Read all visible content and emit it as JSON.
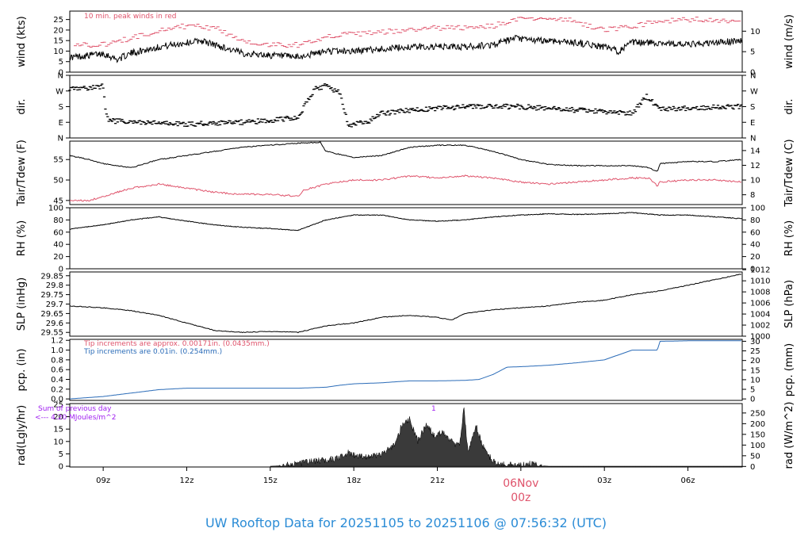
{
  "title": "UW Rooftop Data for 20251105  to  20251106 @ 07:56:32  (UTC)",
  "colors": {
    "black": "#000000",
    "red": "#df536b",
    "blue": "#2b6cb8",
    "purple": "#a020f0",
    "title": "#2b8cd6"
  },
  "time_axis": {
    "start_hour": 7.8,
    "end_hour": 31.95,
    "ticks": [
      {
        "hour": 9,
        "label": "09z"
      },
      {
        "hour": 12,
        "label": "12z"
      },
      {
        "hour": 15,
        "label": "15z"
      },
      {
        "hour": 18,
        "label": "18z"
      },
      {
        "hour": 21,
        "label": "21z"
      },
      {
        "hour": 27,
        "label": "03z"
      },
      {
        "hour": 30,
        "label": "06z"
      }
    ],
    "date_marker": {
      "hour": 24,
      "date_label": "06Nov",
      "hour_label": "00z"
    }
  },
  "notes": {
    "wind": "10 min. peak winds in red",
    "pcp_line1": "Tip increments are approx. 0.00171in. (0.0435mm.)",
    "pcp_line2": "Tip increments are 0.01in. (0.254mm.)",
    "rad_line1": "Sum of previous day",
    "rad_line2": "<--- 4.20 MJoules/m^2",
    "rad_marker": "1"
  },
  "chart_data": [
    {
      "name": "wind",
      "type": "line",
      "ylabel": "wind (kts)",
      "ylabel_right": "wind (m/s)",
      "ylim": [
        0,
        29
      ],
      "yticks": [
        0,
        5,
        10,
        15,
        20,
        25
      ],
      "right_ylim": [
        0,
        14.9
      ],
      "right_yticks": [
        0,
        5,
        10
      ],
      "series": [
        {
          "name": "wind speed (kts)",
          "color": "#000000",
          "style": "line",
          "noise": 1.6,
          "x": [
            7.8,
            8.5,
            9.0,
            9.5,
            10.0,
            11.0,
            12.0,
            12.5,
            13.0,
            14.0,
            15.0,
            16.0,
            17.0,
            18.0,
            19.0,
            20.0,
            21.0,
            22.0,
            23.0,
            23.8,
            24.5,
            25.0,
            26.0,
            27.0,
            27.5,
            28.0,
            29.0,
            30.0,
            31.0,
            31.95
          ],
          "y": [
            7,
            8,
            9,
            6,
            9,
            12,
            14,
            15,
            13,
            9,
            8,
            7,
            10,
            10,
            11,
            12,
            12,
            12,
            13,
            16,
            15,
            15,
            14,
            12,
            10,
            14,
            14,
            13,
            14,
            15
          ]
        },
        {
          "name": "10 min. peak winds",
          "color": "#df536b",
          "style": "dash",
          "x": [
            8.0,
            9.0,
            10.0,
            11.0,
            12.0,
            13.0,
            14.0,
            15.0,
            16.0,
            17.0,
            18.0,
            19.0,
            20.0,
            21.0,
            22.0,
            23.0,
            24.0,
            25.0,
            26.0,
            27.0,
            28.0,
            29.0,
            30.0,
            31.0,
            31.9
          ],
          "y": [
            13,
            13,
            16,
            20,
            22,
            21,
            15,
            13,
            13,
            17,
            18,
            19,
            20,
            21,
            21,
            22,
            25,
            26,
            24,
            20,
            22,
            24,
            25,
            25,
            23
          ]
        }
      ]
    },
    {
      "name": "dir",
      "type": "scatter",
      "ylabel": "dir.",
      "ylabel_right": "dir.",
      "ylim": [
        0,
        360
      ],
      "yticks": [
        0,
        90,
        180,
        270,
        360
      ],
      "ytick_labels": [
        "N",
        "E",
        "S",
        "W",
        "N"
      ],
      "right_ytick_labels": [
        "N",
        "E",
        "S",
        "W",
        "N"
      ],
      "series": [
        {
          "name": "wind direction (deg)",
          "color": "#000000",
          "style": "dots",
          "noise": 14,
          "x": [
            7.8,
            8.5,
            9.0,
            9.1,
            9.2,
            10.0,
            12.0,
            14.0,
            15.0,
            16.0,
            16.3,
            16.6,
            17.0,
            17.5,
            17.8,
            18.5,
            19.0,
            20.0,
            22.0,
            24.0,
            26.0,
            27.0,
            28.0,
            28.5,
            29.0,
            30.0,
            31.0,
            31.95
          ],
          "y": [
            280,
            285,
            300,
            150,
            100,
            90,
            80,
            90,
            100,
            120,
            200,
            280,
            300,
            260,
            75,
            90,
            140,
            160,
            180,
            180,
            160,
            150,
            140,
            240,
            170,
            170,
            180,
            180
          ]
        }
      ]
    },
    {
      "name": "temperature",
      "type": "line",
      "ylabel": "Tair/Tdew (F)",
      "ylabel_right": "Tair/Tdew (C)",
      "ylim": [
        44,
        59.5
      ],
      "yticks": [
        45,
        50,
        55
      ],
      "right_ylim": [
        6.67,
        15.28
      ],
      "right_yticks": [
        8,
        10,
        12,
        14
      ],
      "series": [
        {
          "name": "Tair",
          "color": "#000000",
          "style": "line",
          "noise": 0.12,
          "x": [
            7.8,
            8.5,
            9.0,
            10.0,
            11.0,
            12.0,
            13.0,
            14.0,
            15.0,
            16.0,
            16.8,
            17.0,
            18.0,
            19.0,
            20.0,
            21.0,
            22.0,
            23.0,
            24.0,
            25.0,
            26.0,
            27.0,
            28.0,
            28.6,
            28.9,
            29.0,
            30.0,
            31.0,
            31.95
          ],
          "y": [
            56,
            55,
            54,
            53,
            55,
            56,
            57,
            58,
            58.5,
            59,
            59.2,
            57,
            55.5,
            56,
            58,
            58.5,
            58.5,
            57,
            55,
            53.8,
            53.5,
            53.5,
            53.5,
            53.0,
            52.0,
            54,
            54.5,
            54.5,
            55
          ]
        },
        {
          "name": "Tdew",
          "color": "#df536b",
          "style": "line",
          "noise": 0.2,
          "x": [
            7.8,
            8.5,
            9.0,
            10.0,
            11.0,
            12.0,
            13.0,
            14.0,
            15.0,
            16.0,
            16.2,
            17.0,
            18.0,
            19.0,
            20.0,
            21.0,
            22.0,
            23.0,
            24.0,
            25.0,
            26.0,
            27.0,
            28.0,
            28.6,
            28.9,
            29.0,
            30.0,
            31.0,
            31.95
          ],
          "y": [
            45,
            45,
            46,
            48,
            49,
            48,
            47,
            46.5,
            46.5,
            46,
            47.5,
            49,
            50,
            50,
            51,
            50.5,
            51,
            50.5,
            49.5,
            49,
            49.5,
            50,
            50.5,
            50.5,
            48.5,
            49.5,
            50,
            50,
            49.5
          ]
        }
      ]
    },
    {
      "name": "rh",
      "type": "line",
      "ylabel": "RH (%)",
      "ylabel_right": "RH (%)",
      "ylim": [
        0,
        100
      ],
      "yticks": [
        0,
        20,
        40,
        60,
        80,
        100
      ],
      "right_ylim": [
        0,
        100
      ],
      "right_yticks": [
        0,
        20,
        40,
        60,
        80,
        100
      ],
      "series": [
        {
          "name": "relative humidity",
          "color": "#000000",
          "style": "line",
          "noise": 0.6,
          "x": [
            7.8,
            9.0,
            10.0,
            11.0,
            12.0,
            13.0,
            14.0,
            15.0,
            16.0,
            17.0,
            18.0,
            19.0,
            20.0,
            21.0,
            22.0,
            23.0,
            24.0,
            25.0,
            26.0,
            27.0,
            28.0,
            29.0,
            30.0,
            31.0,
            31.95
          ],
          "y": [
            65,
            72,
            80,
            85,
            78,
            72,
            68,
            66,
            63,
            80,
            88,
            88,
            80,
            78,
            80,
            85,
            88,
            90,
            89,
            90,
            92,
            88,
            88,
            85,
            82
          ]
        }
      ]
    },
    {
      "name": "slp",
      "type": "line",
      "ylabel": "SLP (inHg)",
      "ylabel_right": "SLP (hPa)",
      "ylim": [
        29.53,
        29.87
      ],
      "yticks": [
        29.55,
        29.6,
        29.65,
        29.7,
        29.75,
        29.8,
        29.85
      ],
      "right_ylim": [
        1000,
        1011.6
      ],
      "right_yticks": [
        1000,
        1002,
        1004,
        1006,
        1008,
        1010,
        1012
      ],
      "series": [
        {
          "name": "sea level pressure",
          "color": "#000000",
          "style": "line",
          "noise": 0.002,
          "x": [
            7.8,
            9.0,
            10.0,
            11.0,
            12.0,
            13.0,
            14.0,
            15.0,
            16.0,
            17.0,
            18.0,
            19.0,
            20.0,
            21.0,
            21.5,
            22.0,
            23.0,
            24.0,
            25.0,
            26.0,
            27.0,
            28.0,
            29.0,
            30.0,
            31.0,
            31.95
          ],
          "y": [
            29.69,
            29.68,
            29.665,
            29.64,
            29.6,
            29.56,
            29.55,
            29.555,
            29.55,
            29.585,
            29.6,
            29.63,
            29.64,
            29.63,
            29.615,
            29.65,
            29.67,
            29.68,
            29.69,
            29.71,
            29.72,
            29.75,
            29.77,
            29.8,
            29.83,
            29.86
          ]
        }
      ]
    },
    {
      "name": "pcp",
      "type": "line",
      "ylabel": "pcp. (in)",
      "ylabel_right": "pcp. (mm)",
      "ylim": [
        -0.03,
        1.22
      ],
      "yticks": [
        0.0,
        0.2,
        0.4,
        0.6,
        0.8,
        1.0,
        1.2
      ],
      "ytick_labels": [
        "0.0",
        "0.2",
        "0.4",
        "0.6",
        "0.8",
        "1.0",
        "1.2"
      ],
      "right_ylim": [
        -0.76,
        31.0
      ],
      "right_yticks": [
        0,
        5,
        10,
        15,
        20,
        25,
        30
      ],
      "series": [
        {
          "name": "accumulated precipitation",
          "color": "#2b6cb8",
          "style": "line",
          "noise": 0,
          "x": [
            7.8,
            9.0,
            10.0,
            11.0,
            12.0,
            13.0,
            14.0,
            15.0,
            16.0,
            17.0,
            17.5,
            18.0,
            19.0,
            20.0,
            21.0,
            22.0,
            22.5,
            23.0,
            23.5,
            24.0,
            25.0,
            26.0,
            27.0,
            27.5,
            28.0,
            28.9,
            29.0,
            30.0,
            31.0,
            31.95
          ],
          "y": [
            0.0,
            0.05,
            0.12,
            0.19,
            0.22,
            0.22,
            0.22,
            0.22,
            0.22,
            0.24,
            0.28,
            0.31,
            0.33,
            0.37,
            0.37,
            0.38,
            0.4,
            0.5,
            0.65,
            0.66,
            0.69,
            0.74,
            0.8,
            0.9,
            1.0,
            1.0,
            1.18,
            1.19,
            1.19,
            1.19
          ]
        }
      ]
    },
    {
      "name": "rad",
      "type": "area",
      "ylabel": "rad(Lgly/hr)",
      "ylabel_right": "rad (W/m^2)",
      "ylim": [
        -0.3,
        25.3
      ],
      "yticks": [
        0,
        5,
        10,
        15,
        20,
        25
      ],
      "right_ylim": [
        -2.5,
        294
      ],
      "right_yticks": [
        0,
        50,
        100,
        150,
        200,
        250
      ],
      "series": [
        {
          "name": "solar radiation",
          "color": "#000000",
          "style": "area",
          "noise": 1.3,
          "x": [
            15.0,
            15.5,
            16.0,
            16.5,
            17.0,
            17.5,
            17.8,
            18.0,
            18.5,
            19.0,
            19.5,
            19.7,
            20.0,
            20.3,
            20.6,
            20.9,
            21.2,
            21.5,
            21.8,
            21.95,
            22.1,
            22.4,
            22.6,
            22.8,
            23.0,
            23.5,
            24.0,
            24.3,
            24.6,
            25.0,
            31.95
          ],
          "y": [
            0,
            0.3,
            1.0,
            2.0,
            2.5,
            3.5,
            5.5,
            4.5,
            3.5,
            5.0,
            9.0,
            16.0,
            19.0,
            10.0,
            17.0,
            12.0,
            14.0,
            10.0,
            8.0,
            24.0,
            6.0,
            16.0,
            9.0,
            5.0,
            2.0,
            0.5,
            0.3,
            1.0,
            0.4,
            0.0,
            0.0
          ]
        }
      ]
    }
  ]
}
